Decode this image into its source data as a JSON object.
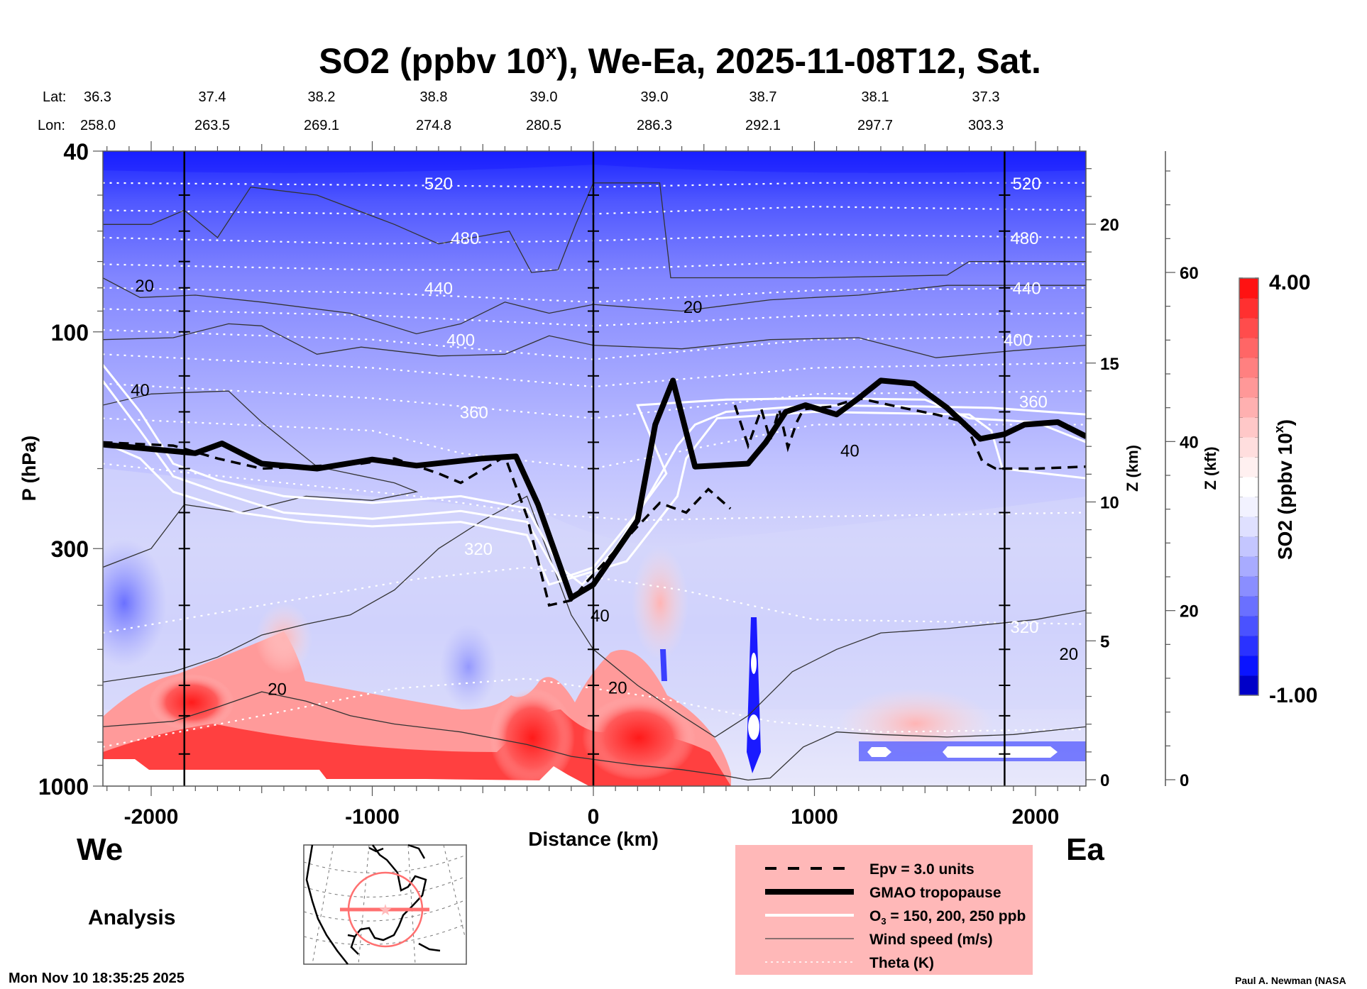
{
  "header": {
    "title_main": "SO2 (ppbv 10",
    "title_sup": "x",
    "title_rest": "), We-Ea, 2025-11-08T12, Sat.",
    "lat_label": "Lat:",
    "lon_label": "Lon:",
    "lats": [
      "36.3",
      "37.4",
      "38.2",
      "38.8",
      "39.0",
      "39.0",
      "38.7",
      "38.1",
      "37.3"
    ],
    "lons": [
      "258.0",
      "263.5",
      "269.1",
      "274.8",
      "280.5",
      "286.3",
      "292.1",
      "297.7",
      "303.3"
    ]
  },
  "labels": {
    "west": "We",
    "east": "Ea",
    "analysis": "Analysis",
    "timestamp": "Mon Nov 10 18:35:25 2025",
    "credit": "Paul A. Newman (NASA"
  },
  "legend": {
    "items": [
      {
        "label": "Epv = 3.0 units",
        "style": "dashed"
      },
      {
        "label": "GMAO tropopause",
        "style": "thick"
      },
      {
        "label": "O₃ = 150, 200, 250 ppb",
        "style": "white"
      },
      {
        "label": "Wind speed (m/s)",
        "style": "thin"
      },
      {
        "label": "Theta (K)",
        "style": "dotted"
      }
    ],
    "background": "#ffb8b8"
  },
  "colorbar": {
    "label_main": "SO2 (ppbv 10",
    "label_sup": "x",
    "label_end": ")",
    "max_label": "4.00",
    "min_label": "-1.00",
    "vmin": -1.0,
    "vmax": 4.0,
    "white_at": 1.6,
    "colors": [
      "#0000c8",
      "#0a14ff",
      "#2a32ff",
      "#4a52ff",
      "#6a70ff",
      "#8a8eff",
      "#a8abff",
      "#c4c6ff",
      "#dfe0ff",
      "#f2f2ff",
      "#ffffff",
      "#fff0f0",
      "#ffdede",
      "#ffc8c8",
      "#ffb0b0",
      "#ff9898",
      "#ff8080",
      "#ff6666",
      "#ff4c4c",
      "#ff3030",
      "#ff1212"
    ]
  },
  "chart_data": {
    "type": "heatmap",
    "title": "SO2 (ppbv 10^x), We-Ea, 2025-11-08T12, Sat.",
    "xlabel": "Distance (km)",
    "ylabel": "P (hPa)",
    "y2label": "Z (km)",
    "y3label": "Z (kft)",
    "xlim": [
      -2220,
      2230
    ],
    "ylim_hpa": [
      1000,
      40
    ],
    "x_ticks": [
      -2000,
      -1000,
      0,
      1000,
      2000
    ],
    "x_tick_labels": [
      "-2000",
      "-1000",
      "0",
      "1000",
      "2000"
    ],
    "y_ticks_hpa": [
      40,
      100,
      300,
      1000
    ],
    "y_tick_labels": [
      "40",
      "100",
      "300",
      "1000"
    ],
    "z_km_ticks": [
      0,
      5,
      10,
      15,
      20
    ],
    "z_kft_ticks": [
      0,
      20,
      40,
      60
    ],
    "reference_lines_km": [
      -1850,
      0,
      1860
    ],
    "theta_levels": [
      {
        "label": "520",
        "p": 47
      },
      {
        "label": "480",
        "p": 62
      },
      {
        "label": "440",
        "p": 80
      },
      {
        "label": "400",
        "p": 104
      },
      {
        "label": "360",
        "p": 150
      },
      {
        "label": "320",
        "p": 450
      }
    ],
    "theta_lines": [
      [
        [
          -2220,
          47
        ],
        [
          -1000,
          47.5
        ],
        [
          0,
          48
        ],
        [
          1000,
          47
        ],
        [
          2230,
          47
        ]
      ],
      [
        [
          -2220,
          54
        ],
        [
          -1000,
          55
        ],
        [
          0,
          55
        ],
        [
          1000,
          53
        ],
        [
          2230,
          54
        ]
      ],
      [
        [
          -2220,
          62
        ],
        [
          -1000,
          64
        ],
        [
          0,
          63
        ],
        [
          1000,
          61
        ],
        [
          2230,
          62
        ]
      ],
      [
        [
          -2220,
          71
        ],
        [
          -1000,
          73
        ],
        [
          0,
          73
        ],
        [
          1000,
          70
        ],
        [
          2230,
          71
        ]
      ],
      [
        [
          -2220,
          80
        ],
        [
          -1000,
          82
        ],
        [
          0,
          86
        ],
        [
          1000,
          81
        ],
        [
          2230,
          80
        ]
      ],
      [
        [
          -2220,
          89
        ],
        [
          -1000,
          92
        ],
        [
          0,
          97
        ],
        [
          1000,
          92
        ],
        [
          2230,
          91
        ]
      ],
      [
        [
          -2220,
          99
        ],
        [
          -1000,
          104
        ],
        [
          0,
          115
        ],
        [
          1000,
          104
        ],
        [
          2230,
          102
        ]
      ],
      [
        [
          -2220,
          112
        ],
        [
          -1000,
          120
        ],
        [
          0,
          132
        ],
        [
          1000,
          120
        ],
        [
          2230,
          117
        ]
      ],
      [
        [
          -2220,
          130
        ],
        [
          -1000,
          140
        ],
        [
          0,
          155
        ],
        [
          1000,
          137
        ],
        [
          2230,
          135
        ]
      ],
      [
        [
          -2220,
          155
        ],
        [
          -1000,
          165
        ],
        [
          -600,
          185
        ],
        [
          0,
          200
        ],
        [
          600,
          175
        ],
        [
          1000,
          160
        ],
        [
          2230,
          160
        ]
      ],
      [
        [
          -2220,
          195
        ],
        [
          -1400,
          215
        ],
        [
          -800,
          230
        ],
        [
          -300,
          250
        ],
        [
          200,
          260
        ],
        [
          1000,
          255
        ],
        [
          2230,
          250
        ]
      ],
      [
        [
          -2220,
          460
        ],
        [
          -1500,
          400
        ],
        [
          -800,
          350
        ],
        [
          -300,
          330
        ],
        [
          400,
          370
        ],
        [
          1000,
          430
        ],
        [
          2230,
          440
        ]
      ],
      [
        [
          -2220,
          820
        ],
        [
          -1500,
          700
        ],
        [
          -900,
          610
        ],
        [
          -300,
          580
        ],
        [
          300,
          640
        ],
        [
          800,
          720
        ],
        [
          1300,
          760
        ],
        [
          2230,
          750
        ]
      ]
    ],
    "wind_speed_labels": [
      {
        "label": "20",
        "x": -2030,
        "p": 79
      },
      {
        "label": "40",
        "x": -2050,
        "p": 134
      },
      {
        "label": "20",
        "x": 450,
        "p": 88
      },
      {
        "label": "40",
        "x": 1160,
        "p": 182
      },
      {
        "label": "40",
        "x": 30,
        "p": 420
      },
      {
        "label": "20",
        "x": -1430,
        "p": 610
      },
      {
        "label": "20",
        "x": 110,
        "p": 605
      },
      {
        "label": "20",
        "x": 2150,
        "p": 510
      }
    ],
    "wind_speed_lines": [
      [
        [
          -2220,
          58
        ],
        [
          -2000,
          58
        ],
        [
          -1850,
          54
        ],
        [
          -1700,
          62
        ],
        [
          -1550,
          48
        ],
        [
          -1250,
          50
        ],
        [
          -900,
          58
        ],
        [
          -700,
          64
        ],
        [
          -380,
          60
        ],
        [
          -280,
          74
        ],
        [
          -160,
          73
        ],
        [
          -80,
          58
        ],
        [
          0,
          47
        ],
        [
          300,
          47
        ],
        [
          350,
          76
        ],
        [
          1000,
          76
        ],
        [
          1600,
          75
        ],
        [
          1700,
          70
        ],
        [
          2230,
          70
        ]
      ],
      [
        [
          -2220,
          76
        ],
        [
          -2050,
          84
        ],
        [
          -1800,
          83
        ],
        [
          -1500,
          86
        ],
        [
          -1100,
          91
        ],
        [
          -800,
          101
        ],
        [
          -600,
          96
        ],
        [
          -400,
          86
        ],
        [
          -200,
          91
        ],
        [
          0,
          87
        ],
        [
          400,
          90
        ],
        [
          800,
          85
        ],
        [
          1200,
          83
        ],
        [
          1600,
          79
        ],
        [
          2230,
          79
        ]
      ],
      [
        [
          -2220,
          104
        ],
        [
          -1900,
          103
        ],
        [
          -1650,
          96
        ],
        [
          -1500,
          97
        ],
        [
          -1250,
          112
        ],
        [
          -1050,
          108
        ],
        [
          -700,
          113
        ],
        [
          -400,
          112
        ],
        [
          -200,
          102
        ],
        [
          0,
          107
        ],
        [
          400,
          109
        ],
        [
          800,
          104
        ],
        [
          1200,
          103
        ],
        [
          1550,
          114
        ],
        [
          1900,
          110
        ],
        [
          2230,
          107
        ]
      ],
      [
        [
          -2220,
          145
        ],
        [
          -2000,
          137
        ],
        [
          -1850,
          136
        ],
        [
          -1650,
          135
        ],
        [
          -1500,
          158
        ],
        [
          -1250,
          198
        ],
        [
          -900,
          215
        ],
        [
          -800,
          225
        ],
        [
          -1000,
          235
        ],
        [
          -1300,
          230
        ],
        [
          -1600,
          250
        ],
        [
          -1850,
          240
        ],
        [
          -2000,
          300
        ],
        [
          -2220,
          330
        ]
      ],
      [
        [
          -2220,
          590
        ],
        [
          -1900,
          560
        ],
        [
          -1700,
          520
        ],
        [
          -1500,
          465
        ],
        [
          -1300,
          440
        ],
        [
          -1100,
          420
        ],
        [
          -900,
          370
        ],
        [
          -700,
          300
        ],
        [
          -500,
          260
        ],
        [
          -300,
          230
        ],
        [
          -100,
          420
        ],
        [
          0,
          500
        ],
        [
          200,
          600
        ],
        [
          400,
          700
        ],
        [
          550,
          780
        ],
        [
          700,
          700
        ],
        [
          900,
          560
        ],
        [
          1100,
          500
        ],
        [
          1300,
          460
        ],
        [
          1600,
          450
        ],
        [
          1800,
          440
        ],
        [
          2000,
          430
        ],
        [
          2230,
          410
        ]
      ],
      [
        [
          -2220,
          740
        ],
        [
          -1900,
          720
        ],
        [
          -1700,
          670
        ],
        [
          -1500,
          620
        ],
        [
          -1300,
          650
        ],
        [
          -1100,
          700
        ],
        [
          -900,
          730
        ],
        [
          -600,
          760
        ],
        [
          -300,
          810
        ],
        [
          -100,
          860
        ],
        [
          50,
          880
        ],
        [
          200,
          900
        ],
        [
          400,
          920
        ],
        [
          600,
          950
        ],
        [
          700,
          970
        ],
        [
          800,
          960
        ],
        [
          950,
          820
        ],
        [
          1100,
          760
        ],
        [
          1300,
          770
        ],
        [
          1600,
          780
        ],
        [
          1900,
          770
        ],
        [
          2230,
          740
        ]
      ]
    ],
    "tropopause_line": [
      [
        -2220,
        177
      ],
      [
        -1800,
        185
      ],
      [
        -1680,
        176
      ],
      [
        -1500,
        195
      ],
      [
        -1250,
        200
      ],
      [
        -1000,
        191
      ],
      [
        -800,
        197
      ],
      [
        -500,
        190
      ],
      [
        -350,
        188
      ],
      [
        -250,
        240
      ],
      [
        -100,
        385
      ],
      [
        0,
        360
      ],
      [
        200,
        260
      ],
      [
        280,
        160
      ],
      [
        360,
        128
      ],
      [
        460,
        198
      ],
      [
        700,
        195
      ],
      [
        780,
        175
      ],
      [
        870,
        150
      ],
      [
        960,
        145
      ],
      [
        1100,
        152
      ],
      [
        1200,
        140
      ],
      [
        1300,
        128
      ],
      [
        1450,
        130
      ],
      [
        1600,
        147
      ],
      [
        1750,
        172
      ],
      [
        1860,
        168
      ],
      [
        1950,
        160
      ],
      [
        2100,
        158
      ],
      [
        2230,
        170
      ]
    ],
    "epv_dashed_segments": [
      [
        [
          -2220,
          175
        ],
        [
          -1900,
          178
        ],
        [
          -1700,
          190
        ],
        [
          -1500,
          200
        ],
        [
          -1300,
          198
        ],
        [
          -1050,
          195
        ],
        [
          -900,
          190
        ],
        [
          -700,
          205
        ],
        [
          -600,
          215
        ],
        [
          -400,
          188
        ],
        [
          -300,
          255
        ],
        [
          -200,
          400
        ],
        [
          -100,
          390
        ],
        [
          -30,
          355
        ],
        [
          200,
          268
        ],
        [
          300,
          238
        ],
        [
          420,
          250
        ],
        [
          520,
          222
        ],
        [
          620,
          245
        ]
      ],
      [
        [
          640,
          145
        ],
        [
          700,
          178
        ],
        [
          760,
          148
        ],
        [
          800,
          173
        ],
        [
          840,
          148
        ],
        [
          880,
          180
        ],
        [
          920,
          158
        ],
        [
          950,
          148
        ],
        [
          1080,
          146
        ],
        [
          1200,
          140
        ],
        [
          1400,
          147
        ],
        [
          1550,
          152
        ],
        [
          1680,
          158
        ],
        [
          1760,
          193
        ],
        [
          1820,
          200
        ],
        [
          2000,
          200
        ],
        [
          2230,
          198
        ]
      ]
    ],
    "ozone_lines": [
      [
        [
          -2220,
          118
        ],
        [
          -2050,
          150
        ],
        [
          -1900,
          195
        ],
        [
          -1700,
          212
        ],
        [
          -1400,
          230
        ],
        [
          -1000,
          238
        ],
        [
          -600,
          230
        ],
        [
          -300,
          245
        ],
        [
          -150,
          330
        ],
        [
          -50,
          360
        ],
        [
          100,
          300
        ],
        [
          260,
          225
        ],
        [
          380,
          178
        ],
        [
          460,
          160
        ],
        [
          600,
          150
        ],
        [
          1000,
          145
        ],
        [
          1500,
          146
        ],
        [
          1800,
          147
        ],
        [
          2230,
          152
        ]
      ],
      [
        [
          -2220,
          128
        ],
        [
          -2050,
          165
        ],
        [
          -1900,
          208
        ],
        [
          -1700,
          225
        ],
        [
          -1400,
          250
        ],
        [
          -1000,
          258
        ],
        [
          -600,
          248
        ],
        [
          -300,
          262
        ],
        [
          -150,
          350
        ],
        [
          0,
          330
        ],
        [
          200,
          250
        ],
        [
          330,
          205
        ],
        [
          200,
          145
        ],
        [
          600,
          141
        ],
        [
          1000,
          140
        ],
        [
          1500,
          141
        ],
        [
          1700,
          155
        ],
        [
          2000,
          158
        ],
        [
          2230,
          175
        ]
      ],
      [
        [
          -2220,
          175
        ],
        [
          -2050,
          190
        ],
        [
          -1900,
          225
        ],
        [
          -1600,
          250
        ],
        [
          -1300,
          262
        ],
        [
          -1000,
          268
        ],
        [
          -600,
          262
        ],
        [
          -300,
          280
        ],
        [
          -200,
          360
        ],
        [
          150,
          320
        ],
        [
          380,
          230
        ],
        [
          420,
          190
        ],
        [
          560,
          155
        ],
        [
          1000,
          150
        ],
        [
          1700,
          152
        ],
        [
          1800,
          165
        ],
        [
          1850,
          200
        ],
        [
          2230,
          210
        ]
      ]
    ],
    "so2_regions": [
      {
        "desc": "upper stratosphere dark blue",
        "value": -0.7
      },
      {
        "desc": "lower stratosphere mid blue",
        "value": 0.2
      },
      {
        "desc": "upper troposphere light blue",
        "value": 1.1
      },
      {
        "desc": "boundary layer red plume",
        "value": 3.6
      },
      {
        "desc": "eastern low-level blue pockets",
        "value": -0.8
      }
    ]
  }
}
